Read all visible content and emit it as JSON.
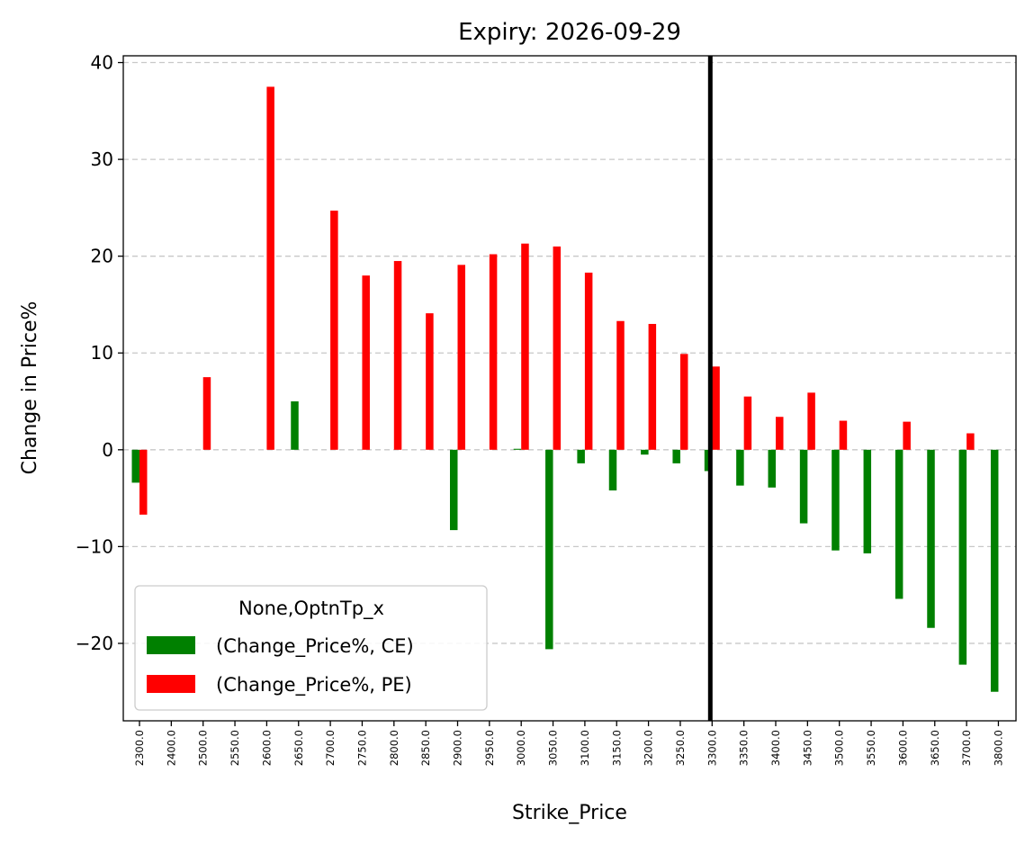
{
  "chart_data": {
    "type": "bar",
    "title": "Expiry: 2026-09-29",
    "xlabel": "Strike_Price",
    "ylabel": "Change in Price%",
    "ylim": [
      -28,
      40.7
    ],
    "yticks": [
      -20,
      -10,
      0,
      10,
      20,
      30,
      40
    ],
    "ytick_labels": [
      "−20",
      "−10",
      "0",
      "10",
      "20",
      "30",
      "40"
    ],
    "grid": "y dashed",
    "categories": [
      "2300.0",
      "2400.0",
      "2500.0",
      "2550.0",
      "2600.0",
      "2650.0",
      "2700.0",
      "2750.0",
      "2800.0",
      "2850.0",
      "2900.0",
      "2950.0",
      "3000.0",
      "3050.0",
      "3100.0",
      "3150.0",
      "3200.0",
      "3250.0",
      "3300.0",
      "3350.0",
      "3400.0",
      "3450.0",
      "3500.0",
      "3550.0",
      "3600.0",
      "3650.0",
      "3700.0",
      "3800.0"
    ],
    "series": [
      {
        "name": "(Change_Price%, CE)",
        "color": "#008000",
        "values": [
          -3.4,
          null,
          null,
          null,
          null,
          5.0,
          null,
          null,
          null,
          null,
          -8.3,
          null,
          0.1,
          -20.6,
          -1.4,
          -4.2,
          -0.5,
          -1.4,
          -2.2,
          -3.7,
          -3.9,
          -7.6,
          -10.4,
          -10.7,
          -15.4,
          -18.4,
          -22.2,
          -25.0
        ]
      },
      {
        "name": "(Change_Price%, PE)",
        "color": "#ff0000",
        "values": [
          -6.7,
          null,
          7.5,
          null,
          37.5,
          null,
          24.7,
          18.0,
          19.5,
          14.1,
          19.1,
          20.2,
          21.3,
          21.0,
          18.3,
          13.3,
          13.0,
          9.9,
          8.6,
          5.5,
          3.4,
          5.9,
          3.0,
          null,
          2.9,
          null,
          1.7,
          null
        ]
      }
    ],
    "vline": {
      "x_category": "3300.0",
      "color": "#000000"
    },
    "legend": {
      "title": "None,OptnTp_x",
      "placement": "lower-left",
      "entries": [
        "(Change_Price%, CE)",
        "(Change_Price%, PE)"
      ]
    }
  }
}
